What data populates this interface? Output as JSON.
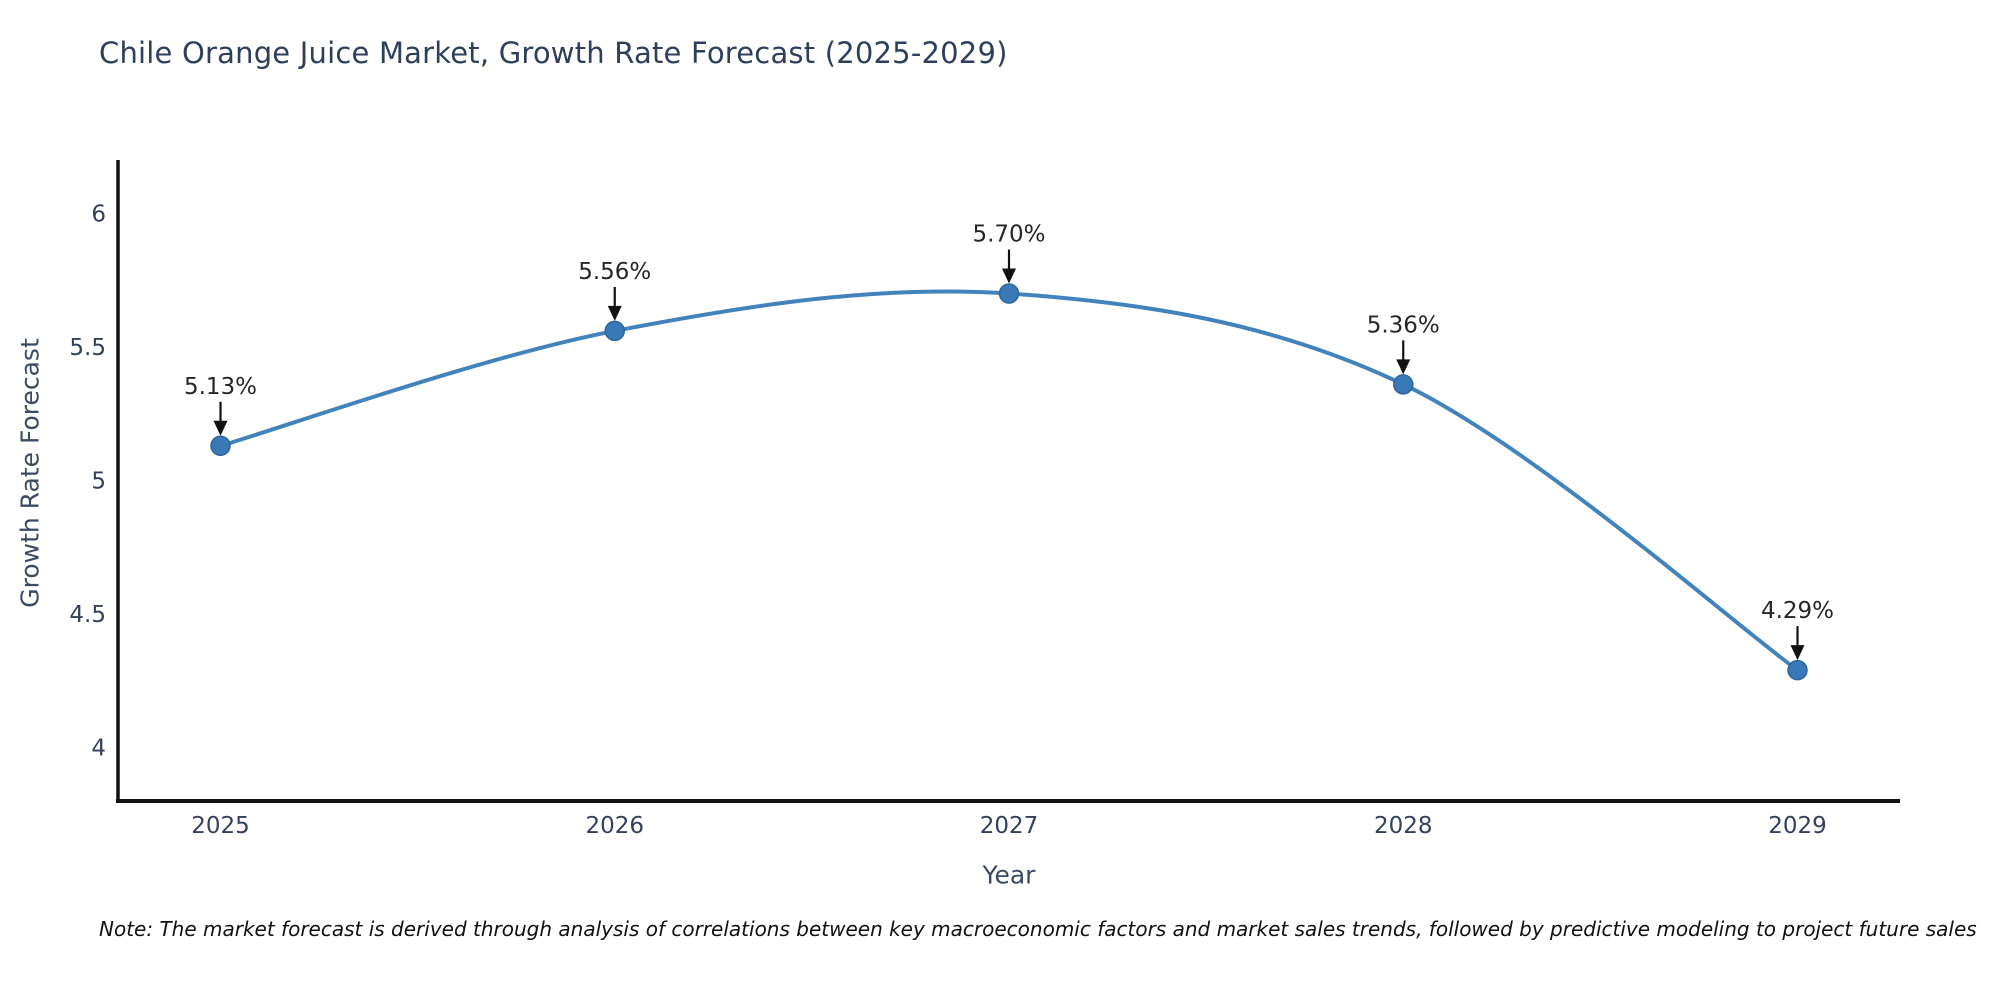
{
  "title": "Chile Orange Juice Market, Growth Rate Forecast (2025-2029)",
  "note": "Note: The market forecast is derived through analysis of correlations between key macroeconomic factors and market sales trends, followed by predictive modeling to project future sales",
  "chart_data": {
    "type": "line",
    "title": "Chile Orange Juice Market, Growth Rate Forecast (2025-2029)",
    "xlabel": "Year",
    "ylabel": "Growth Rate Forecast",
    "x": [
      2025,
      2026,
      2027,
      2028,
      2029
    ],
    "x_tick_labels": [
      "2025",
      "2026",
      "2027",
      "2028",
      "2029"
    ],
    "series": [
      {
        "name": "Growth Rate Forecast",
        "values": [
          5.13,
          5.56,
          5.7,
          5.36,
          4.29
        ]
      }
    ],
    "point_labels": [
      "5.13%",
      "5.56%",
      "5.70%",
      "5.36%",
      "4.29%"
    ],
    "yticks": [
      6,
      5.5,
      5,
      4.5,
      4
    ],
    "ytick_labels": [
      "6",
      "5.5",
      "5",
      "4.5",
      "4"
    ],
    "xlim": [
      2024.74,
      2029.26
    ],
    "ylim": [
      3.8,
      6.2
    ],
    "grid": false,
    "legend": false,
    "line_color": "#4383bc",
    "marker_color": "#3a79b8",
    "marker_edge_color": "#2f6699",
    "axis_color": "#111111",
    "annotation_arrow_color": "#111111",
    "curve": "smooth"
  }
}
